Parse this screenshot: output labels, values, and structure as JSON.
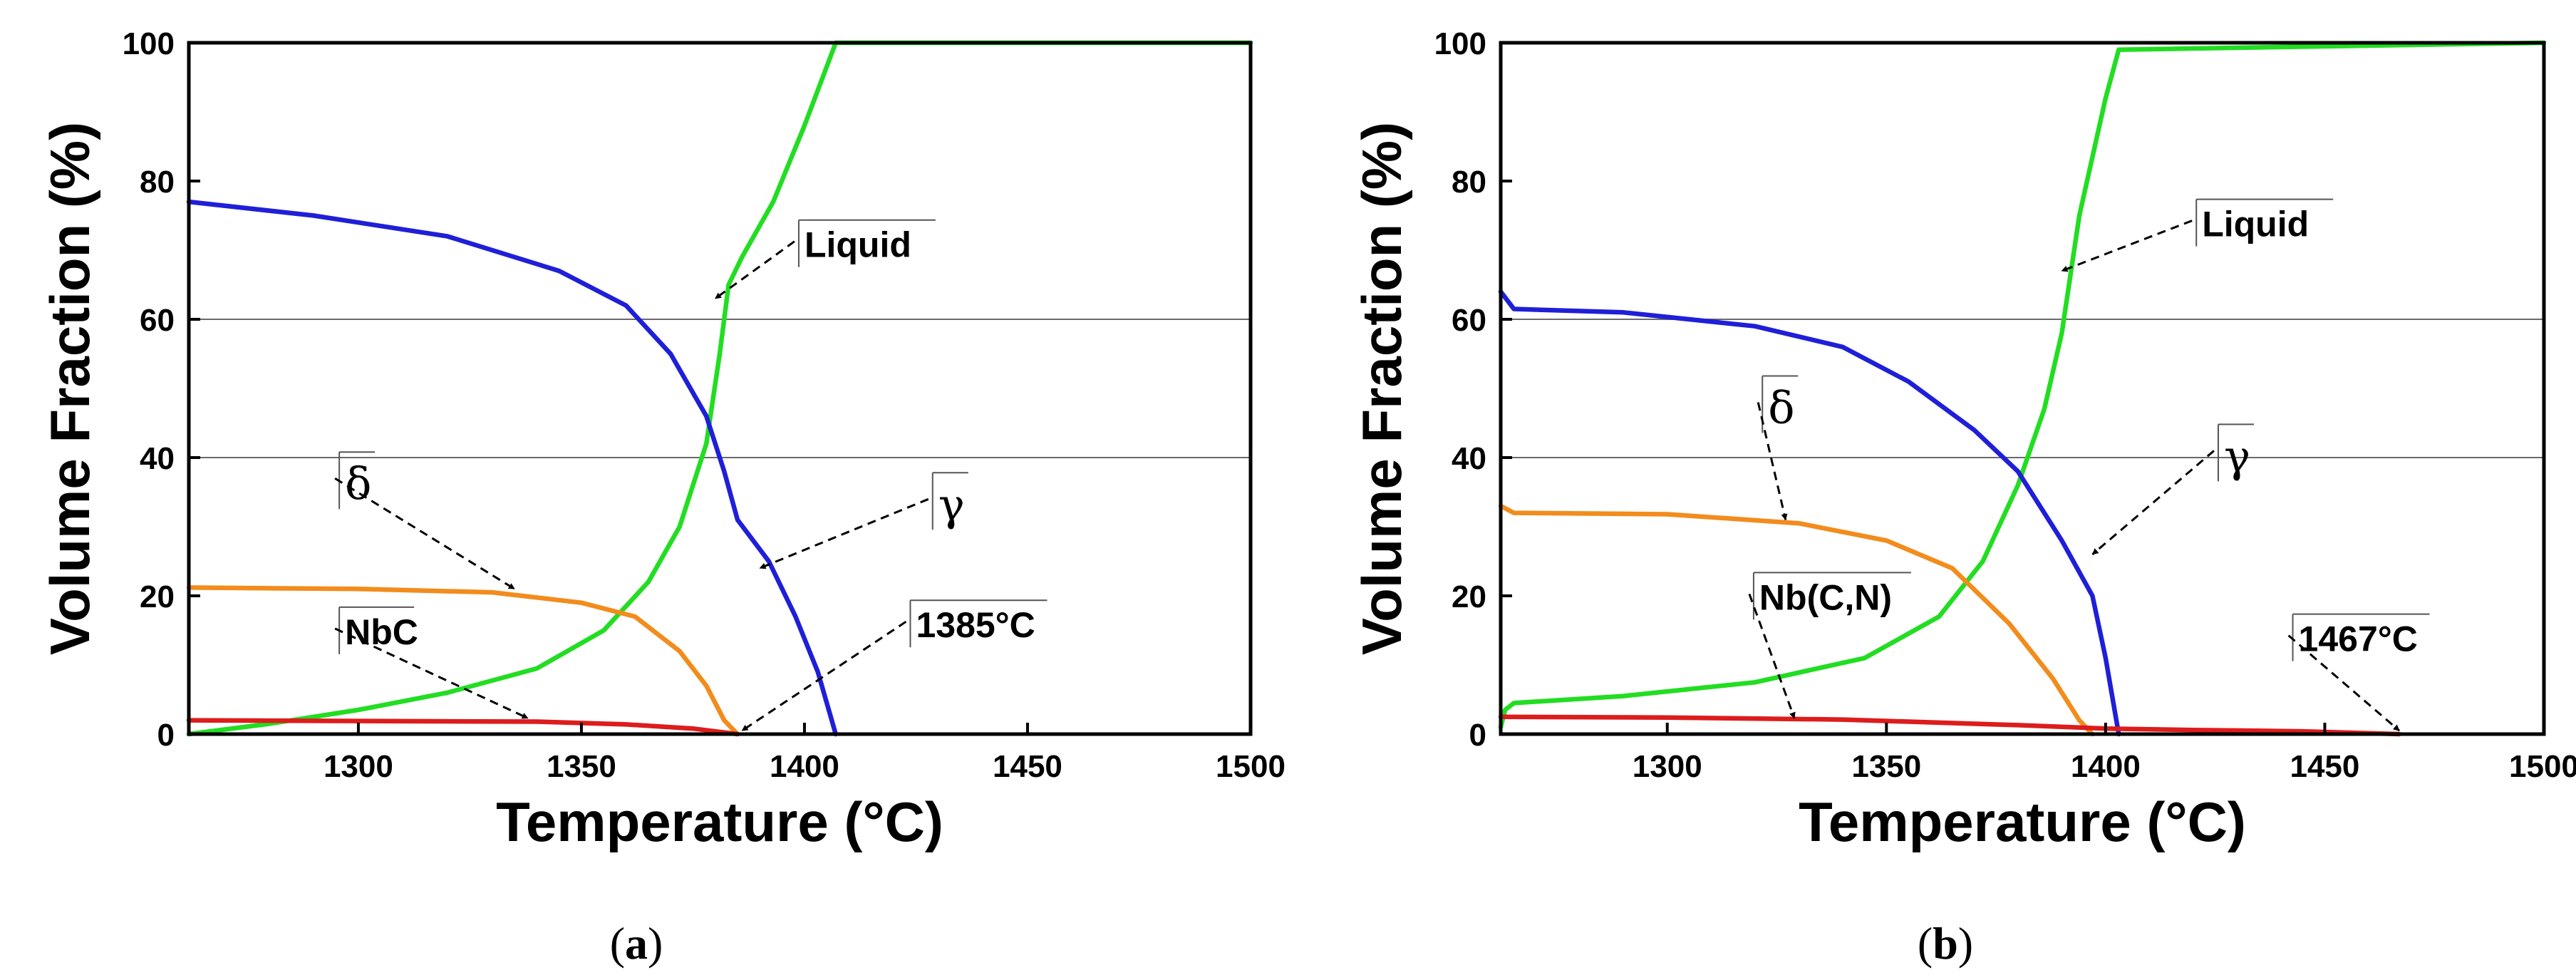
{
  "chart_data": [
    {
      "type": "line",
      "panel_label_open": "(",
      "panel_label_letter": "a",
      "panel_label_close": ")",
      "xlabel": "Temperature (°C)",
      "ylabel": "Volume Fraction (%)",
      "xlim": [
        1262,
        1500
      ],
      "ylim": [
        0,
        100
      ],
      "xticks": [
        1300,
        1350,
        1400,
        1450,
        1500
      ],
      "yticks": [
        0,
        20,
        40,
        60,
        80,
        100
      ],
      "gridlines_y": [
        40,
        60
      ],
      "series": [
        {
          "name": "Liquid",
          "color": "#22dd22",
          "points": [
            [
              1262,
              0
            ],
            [
              1280,
              1.5
            ],
            [
              1300,
              3.5
            ],
            [
              1320,
              6
            ],
            [
              1340,
              9.5
            ],
            [
              1355,
              15
            ],
            [
              1365,
              22
            ],
            [
              1372,
              30
            ],
            [
              1378,
              42
            ],
            [
              1381,
              55
            ],
            [
              1383,
              65
            ],
            [
              1386,
              69
            ],
            [
              1393,
              77
            ],
            [
              1400,
              88
            ],
            [
              1407,
              100
            ],
            [
              1500,
              100
            ]
          ]
        },
        {
          "name": "γ",
          "color": "#1f1fd8",
          "points": [
            [
              1262,
              77
            ],
            [
              1290,
              75
            ],
            [
              1320,
              72
            ],
            [
              1345,
              67
            ],
            [
              1360,
              62
            ],
            [
              1370,
              55
            ],
            [
              1378,
              46
            ],
            [
              1382,
              38
            ],
            [
              1385,
              31
            ],
            [
              1392,
              25
            ],
            [
              1398,
              17
            ],
            [
              1403,
              9
            ],
            [
              1407,
              0
            ]
          ]
        },
        {
          "name": "δ",
          "color": "#f28c1c",
          "points": [
            [
              1262,
              21.2
            ],
            [
              1300,
              21
            ],
            [
              1330,
              20.5
            ],
            [
              1350,
              19
            ],
            [
              1362,
              17
            ],
            [
              1372,
              12
            ],
            [
              1378,
              7
            ],
            [
              1382,
              2
            ],
            [
              1385,
              0
            ]
          ]
        },
        {
          "name": "NbC",
          "color": "#dd1c1c",
          "points": [
            [
              1262,
              2
            ],
            [
              1300,
              1.9
            ],
            [
              1340,
              1.8
            ],
            [
              1360,
              1.4
            ],
            [
              1375,
              0.8
            ],
            [
              1385,
              0
            ]
          ]
        }
      ],
      "annotations": [
        {
          "text": "Liquid",
          "kind": "text",
          "target": [
            1380,
            63
          ],
          "label_at": [
            1400,
            69
          ]
        },
        {
          "text": "γ",
          "kind": "greek",
          "target": [
            1390,
            24
          ],
          "label_at": [
            1430,
            31
          ]
        },
        {
          "text": "δ",
          "kind": "greek",
          "target": [
            1335,
            21
          ],
          "label_at": [
            1297,
            34
          ]
        },
        {
          "text": "NbC",
          "kind": "text",
          "target": [
            1338,
            2.3
          ],
          "label_at": [
            1297,
            13
          ]
        },
        {
          "text": "1385°C",
          "kind": "text",
          "target": [
            1386,
            0.5
          ],
          "label_at": [
            1425,
            14
          ]
        }
      ]
    },
    {
      "type": "line",
      "panel_label_open": "(",
      "panel_label_letter": "b",
      "panel_label_close": ")",
      "xlabel": "Temperature (°C)",
      "ylabel": "Volume Fraction (%)",
      "xlim": [
        1262,
        1500
      ],
      "ylim": [
        0,
        100
      ],
      "xticks": [
        1300,
        1350,
        1400,
        1450,
        1500
      ],
      "yticks": [
        0,
        20,
        40,
        60,
        80,
        100
      ],
      "gridlines_y": [
        40,
        60
      ],
      "series": [
        {
          "name": "Liquid",
          "color": "#22dd22",
          "points": [
            [
              1262,
              1
            ],
            [
              1263,
              3.5
            ],
            [
              1265,
              4.5
            ],
            [
              1290,
              5.5
            ],
            [
              1320,
              7.5
            ],
            [
              1345,
              11
            ],
            [
              1362,
              17
            ],
            [
              1372,
              25
            ],
            [
              1380,
              36
            ],
            [
              1386,
              47
            ],
            [
              1390,
              58
            ],
            [
              1394,
              75
            ],
            [
              1400,
              92
            ],
            [
              1403,
              99
            ],
            [
              1500,
              100
            ]
          ]
        },
        {
          "name": "γ",
          "color": "#1f1fd8",
          "points": [
            [
              1262,
              64
            ],
            [
              1265,
              61.5
            ],
            [
              1290,
              61
            ],
            [
              1320,
              59
            ],
            [
              1340,
              56
            ],
            [
              1355,
              51
            ],
            [
              1370,
              44
            ],
            [
              1380,
              38
            ],
            [
              1390,
              28
            ],
            [
              1397,
              20
            ],
            [
              1400,
              11
            ],
            [
              1403,
              0
            ]
          ]
        },
        {
          "name": "δ",
          "color": "#f28c1c",
          "points": [
            [
              1262,
              33
            ],
            [
              1265,
              32
            ],
            [
              1300,
              31.8
            ],
            [
              1330,
              30.5
            ],
            [
              1350,
              28
            ],
            [
              1365,
              24
            ],
            [
              1378,
              16
            ],
            [
              1388,
              8
            ],
            [
              1394,
              2
            ],
            [
              1397,
              0
            ]
          ]
        },
        {
          "name": "Nb(C,N)",
          "color": "#dd1c1c",
          "points": [
            [
              1262,
              2.5
            ],
            [
              1300,
              2.4
            ],
            [
              1340,
              2.1
            ],
            [
              1380,
              1.3
            ],
            [
              1400,
              0.8
            ],
            [
              1420,
              0.6
            ],
            [
              1445,
              0.4
            ],
            [
              1467,
              0
            ]
          ]
        }
      ],
      "annotations": [
        {
          "text": "Liquid",
          "kind": "text",
          "target": [
            1390,
            67
          ],
          "label_at": [
            1422,
            72
          ]
        },
        {
          "text": "γ",
          "kind": "greek",
          "target": [
            1397,
            26
          ],
          "label_at": [
            1427,
            38
          ]
        },
        {
          "text": "δ",
          "kind": "greek",
          "target": [
            1327,
            31
          ],
          "label_at": [
            1323,
            45
          ]
        },
        {
          "text": "Nb(C,N)",
          "kind": "text",
          "target": [
            1329,
            2.3
          ],
          "label_at": [
            1321,
            18
          ]
        },
        {
          "text": "1467°C",
          "kind": "text",
          "target": [
            1467,
            0.5
          ],
          "label_at": [
            1444,
            12
          ]
        }
      ]
    }
  ]
}
